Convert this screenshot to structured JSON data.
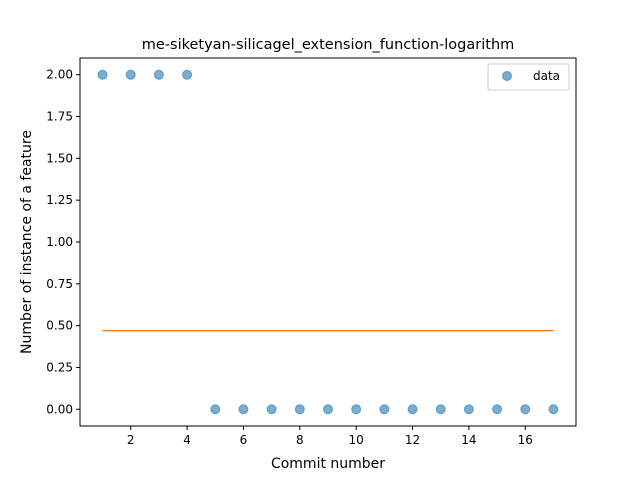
{
  "chart_data": {
    "type": "scatter",
    "title": "me-siketyan-silicagel_extension_function-logarithm",
    "xlabel": "Commit number",
    "ylabel": "Number of instance of a feature",
    "xlim": [
      0.2,
      17.8
    ],
    "ylim": [
      -0.1,
      2.1
    ],
    "xticks": [
      2,
      4,
      6,
      8,
      10,
      12,
      14,
      16
    ],
    "yticks": [
      0.0,
      0.25,
      0.5,
      0.75,
      1.0,
      1.25,
      1.5,
      1.75,
      2.0
    ],
    "ytick_labels": [
      "0.00",
      "0.25",
      "0.50",
      "0.75",
      "1.00",
      "1.25",
      "1.50",
      "1.75",
      "2.00"
    ],
    "grid": false,
    "legend_position": "top-right",
    "series": [
      {
        "name": "data",
        "type": "scatter",
        "color": "#1f77b4",
        "x": [
          1,
          2,
          3,
          4,
          5,
          6,
          7,
          8,
          9,
          10,
          11,
          12,
          13,
          14,
          15,
          16,
          17
        ],
        "y": [
          2,
          2,
          2,
          2,
          0,
          0,
          0,
          0,
          0,
          0,
          0,
          0,
          0,
          0,
          0,
          0,
          0
        ]
      },
      {
        "type": "line",
        "color": "#ff7f0e",
        "x": [
          1,
          17
        ],
        "y": [
          0.47,
          0.47
        ]
      }
    ]
  }
}
